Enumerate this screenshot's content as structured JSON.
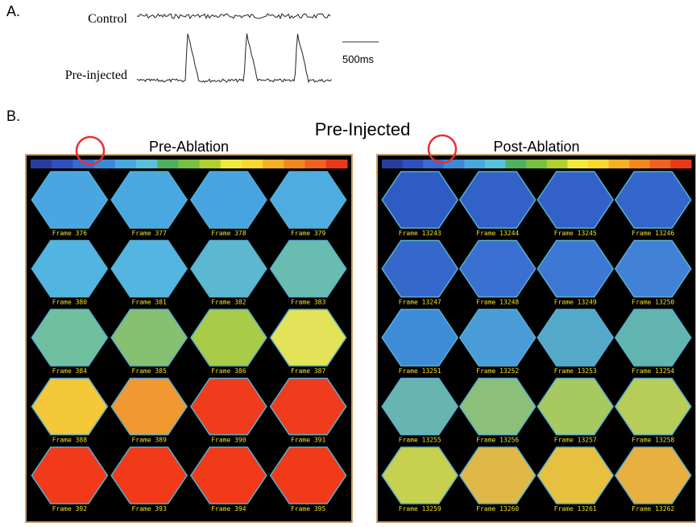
{
  "panel_a": {
    "label": "A.",
    "traces": [
      "Control",
      "Pre-injected"
    ],
    "scale_bar": "500ms"
  },
  "panel_b": {
    "label": "B.",
    "title": "Pre-Injected",
    "panels": [
      {
        "title": "Pre-Ablation",
        "frames": [
          "Frame 376",
          "Frame 377",
          "Frame 378",
          "Frame 379",
          "Frame 380",
          "Frame 381",
          "Frame 382",
          "Frame 383",
          "Frame 384",
          "Frame 385",
          "Frame 386",
          "Frame 387",
          "Frame 388",
          "Frame 389",
          "Frame 390",
          "Frame 391",
          "Frame 392",
          "Frame 393",
          "Frame 394",
          "Frame 395"
        ],
        "frame_colors": [
          "#4aa6e0",
          "#4aa8e0",
          "#48a4e0",
          "#4eace0",
          "#52b4e0",
          "#54b6e0",
          "#5cb8d0",
          "#68bcb0",
          "#70c0a0",
          "#86c070",
          "#a8cc48",
          "#e4e258",
          "#f4c838",
          "#f29830",
          "#f03c1c",
          "#f03c1c",
          "#f03a1a",
          "#f03a1a",
          "#f03a1a",
          "#f03a1a"
        ]
      },
      {
        "title": "Post-Ablation",
        "frames": [
          "Frame 13243",
          "Frame 13244",
          "Frame 13245",
          "Frame 13246",
          "Frame 13247",
          "Frame 13248",
          "Frame 13249",
          "Frame 13250",
          "Frame 13251",
          "Frame 13252",
          "Frame 13253",
          "Frame 13254",
          "Frame 13255",
          "Frame 13256",
          "Frame 13257",
          "Frame 13258",
          "Frame 13259",
          "Frame 13260",
          "Frame 13261",
          "Frame 13262"
        ],
        "frame_colors": [
          "#2f5cc4",
          "#3262c8",
          "#3262c8",
          "#3466cc",
          "#3668cc",
          "#3a70d0",
          "#3c78d4",
          "#4282d6",
          "#3e8cd8",
          "#4a9cd8",
          "#54a8c8",
          "#62b4b0",
          "#68b4b0",
          "#8cc078",
          "#a8c860",
          "#b8cc58",
          "#c8d050",
          "#e0b848",
          "#e8c040",
          "#e8b040"
        ]
      }
    ],
    "colorbar": [
      "#2a3ca0",
      "#3050c0",
      "#3a6ad0",
      "#3e88d8",
      "#48a8e0",
      "#58c0d8",
      "#50b060",
      "#78c040",
      "#b0d030",
      "#f0e840",
      "#f8d830",
      "#f4b028",
      "#f08820",
      "#f06020",
      "#e83818"
    ]
  }
}
